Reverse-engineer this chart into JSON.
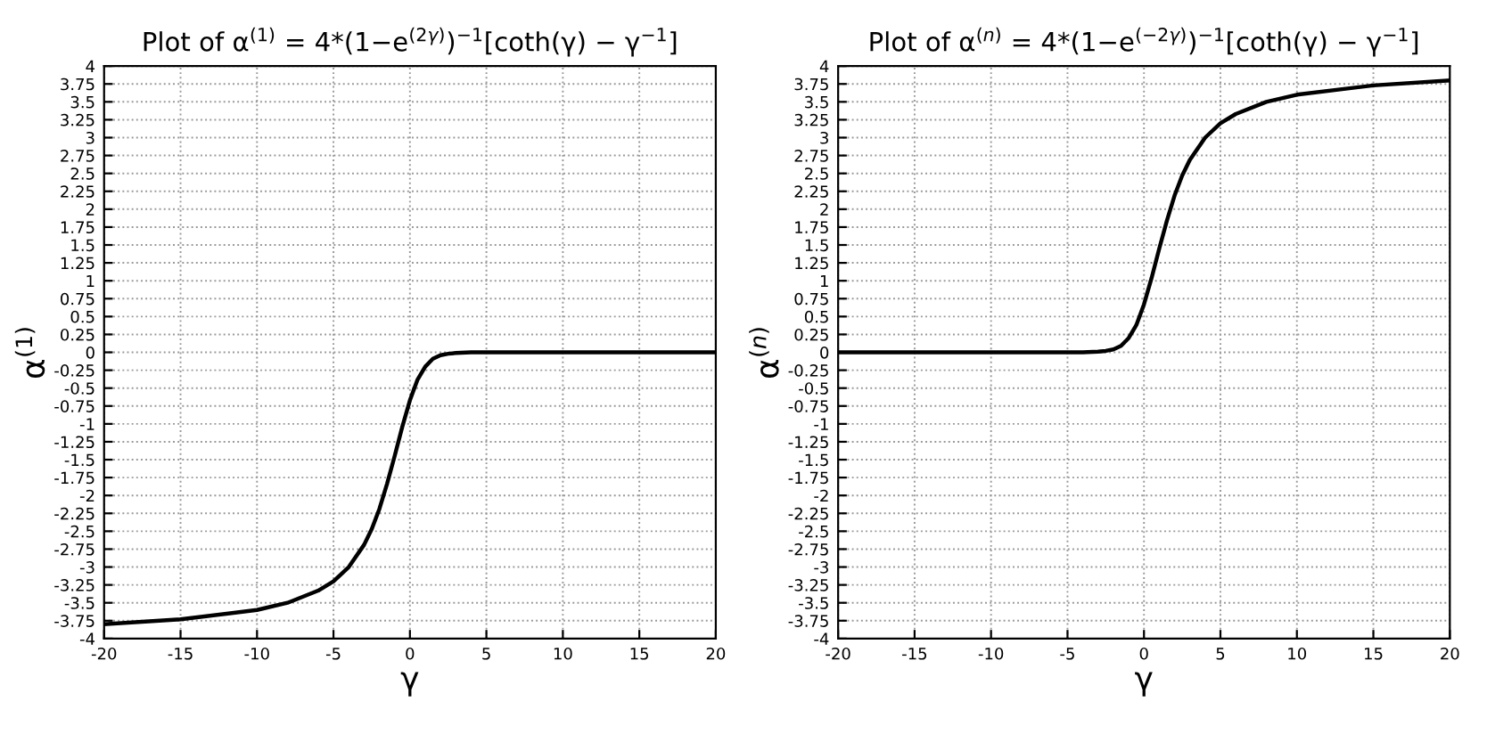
{
  "chart_data": [
    {
      "type": "line",
      "title": "Plot of α$^{(1)}$ = 4*(1−e$^{(2γ)}$)$^{−1}$[coth(γ) − γ$^{−1}$]",
      "xlabel": "γ",
      "ylabel": "α$^{(1)}$",
      "x": [
        -20,
        -15,
        -10,
        -8,
        -6,
        -5,
        -4,
        -3,
        -2.5,
        -2,
        -1.5,
        -1,
        -0.5,
        0,
        0.5,
        1,
        1.5,
        2,
        2.5,
        3,
        4,
        5,
        10,
        15,
        20
      ],
      "series": [
        {
          "color": "#000000",
          "values": [
            -3.8,
            -3.73,
            -3.6,
            -3.5,
            -3.33,
            -3.2,
            -3.0,
            -2.69,
            -2.47,
            -2.19,
            -1.84,
            -1.45,
            -1.04,
            -0.67,
            -0.38,
            -0.2,
            -0.09,
            -0.04,
            -0.02,
            -0.01,
            0,
            0,
            0,
            0,
            0
          ]
        }
      ],
      "xlim": [
        -20,
        20
      ],
      "xticks": [
        -20,
        -15,
        -10,
        -5,
        0,
        5,
        10,
        15,
        20
      ],
      "ylim": [
        -4,
        4
      ],
      "yticks": [
        -4,
        -3.75,
        -3.5,
        -3.25,
        -3,
        -2.75,
        -2.5,
        -2.25,
        -2,
        -1.75,
        -1.5,
        -1.25,
        -1,
        -0.75,
        -0.5,
        -0.25,
        0,
        0.25,
        0.5,
        0.75,
        1,
        1.25,
        1.5,
        1.75,
        2,
        2.25,
        2.5,
        2.75,
        3,
        3.25,
        3.5,
        3.75,
        4
      ],
      "grid": true,
      "line_style": "solid"
    },
    {
      "type": "line",
      "title": "Plot of α$^{(n)}$ = 4*(1−e$^{(−2γ)}$)$^{−1}$[coth(γ) − γ$^{−1}$]",
      "xlabel": "γ",
      "ylabel": "α$^{(n)}$",
      "x": [
        -20,
        -15,
        -10,
        -5,
        -4,
        -3,
        -2.5,
        -2,
        -1.5,
        -1,
        -0.5,
        0,
        0.5,
        1,
        1.5,
        2,
        2.5,
        3,
        4,
        5,
        6,
        8,
        10,
        15,
        20
      ],
      "series": [
        {
          "color": "#000000",
          "values": [
            0,
            0,
            0,
            0,
            0,
            0.01,
            0.02,
            0.04,
            0.09,
            0.2,
            0.38,
            0.67,
            1.04,
            1.45,
            1.84,
            2.19,
            2.47,
            2.69,
            3.0,
            3.2,
            3.33,
            3.5,
            3.6,
            3.73,
            3.8
          ]
        }
      ],
      "xlim": [
        -20,
        20
      ],
      "xticks": [
        -20,
        -15,
        -10,
        -5,
        0,
        5,
        10,
        15,
        20
      ],
      "ylim": [
        -4,
        4
      ],
      "yticks": [
        -4,
        -3.75,
        -3.5,
        -3.25,
        -3,
        -2.75,
        -2.5,
        -2.25,
        -2,
        -1.75,
        -1.5,
        -1.25,
        -1,
        -0.75,
        -0.5,
        -0.25,
        0,
        0.25,
        0.5,
        0.75,
        1,
        1.25,
        1.5,
        1.75,
        2,
        2.25,
        2.5,
        2.75,
        3,
        3.25,
        3.5,
        3.75,
        4
      ],
      "grid": true,
      "line_style": "solid"
    }
  ]
}
